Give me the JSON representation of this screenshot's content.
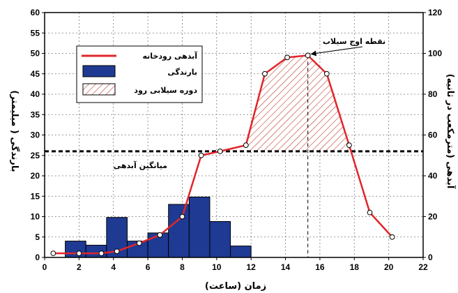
{
  "chart_data": {
    "type": "bar+line",
    "xlabel": "زمان (ساعت)",
    "ylabel_left": "بارندگی ( میلیمتر)",
    "ylabel_right": "آبدهی (مترمکعب در ثانیه)",
    "xlim": [
      0,
      22
    ],
    "ylim_left": [
      0,
      60
    ],
    "ylim_right": [
      0,
      120
    ],
    "x_ticks": [
      0,
      2,
      4,
      6,
      8,
      10,
      12,
      14,
      16,
      18,
      20,
      22
    ],
    "y_left_ticks": [
      0,
      5,
      10,
      15,
      20,
      25,
      30,
      35,
      40,
      45,
      50,
      55,
      60
    ],
    "y_right_ticks": [
      0,
      20,
      40,
      60,
      80,
      100,
      120
    ],
    "grid": true,
    "legend_position": "top-left",
    "rainfall": {
      "name": "بارندگی",
      "color": "#1f3a93",
      "bars": [
        {
          "x0": 1.2,
          "x1": 2.4,
          "value": 4
        },
        {
          "x0": 2.4,
          "x1": 3.6,
          "value": 3
        },
        {
          "x0": 3.6,
          "x1": 4.8,
          "value": 9.8
        },
        {
          "x0": 4.8,
          "x1": 6.0,
          "value": 4
        },
        {
          "x0": 6.0,
          "x1": 7.2,
          "value": 6
        },
        {
          "x0": 7.2,
          "x1": 8.4,
          "value": 13
        },
        {
          "x0": 8.4,
          "x1": 9.6,
          "value": 14.8
        },
        {
          "x0": 9.6,
          "x1": 10.8,
          "value": 8.8
        },
        {
          "x0": 10.8,
          "x1": 12.0,
          "value": 2.8
        }
      ]
    },
    "discharge": {
      "name": "آبدهی رودخانه",
      "color": "#e0262a",
      "x": [
        0.5,
        2,
        3.3,
        4.2,
        5.5,
        6.7,
        8.0,
        9.1,
        10.2,
        11.7,
        12.8,
        14.1,
        15.3,
        16.4,
        17.7,
        18.9,
        20.2
      ],
      "y": [
        2,
        2,
        2,
        3,
        7,
        11,
        20,
        50,
        52,
        55,
        90,
        98,
        99,
        90,
        55,
        22,
        10
      ]
    },
    "flood_period": {
      "name": "دوره سیلابی رود",
      "x_start": 11.7,
      "x_end": 17.7
    },
    "mean_discharge": {
      "label": "میانگین آبدهی",
      "value": 52
    },
    "peak": {
      "label": "نقطه اوج سیلاب",
      "x": 15.3
    }
  }
}
